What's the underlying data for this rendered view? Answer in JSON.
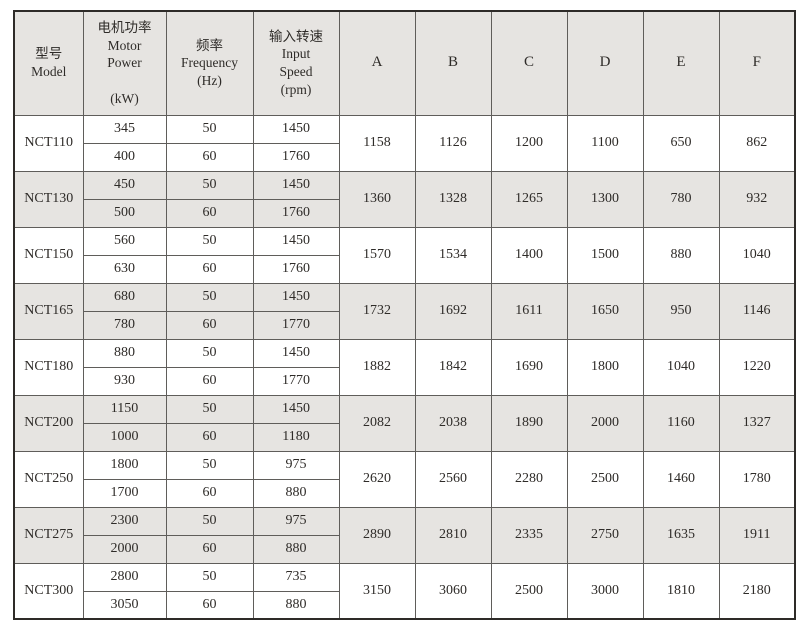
{
  "table": {
    "headers": {
      "model": "型号\nModel",
      "motor_power": "电机功率\nMotor\nPower\n\n(kW)",
      "frequency": "频率\nFrequency\n(Hz)",
      "input_speed": "输入转速\nInput\nSpeed\n(rpm)",
      "dims": [
        "A",
        "B",
        "C",
        "D",
        "E",
        "F"
      ]
    },
    "rows": [
      {
        "model": "NCT110",
        "variants": [
          {
            "power": "345",
            "frequency": "50",
            "speed": "1450"
          },
          {
            "power": "400",
            "frequency": "60",
            "speed": "1760"
          }
        ],
        "dims": [
          "1158",
          "1126",
          "1200",
          "1100",
          "650",
          "862"
        ]
      },
      {
        "model": "NCT130",
        "variants": [
          {
            "power": "450",
            "frequency": "50",
            "speed": "1450"
          },
          {
            "power": "500",
            "frequency": "60",
            "speed": "1760"
          }
        ],
        "dims": [
          "1360",
          "1328",
          "1265",
          "1300",
          "780",
          "932"
        ]
      },
      {
        "model": "NCT150",
        "variants": [
          {
            "power": "560",
            "frequency": "50",
            "speed": "1450"
          },
          {
            "power": "630",
            "frequency": "60",
            "speed": "1760"
          }
        ],
        "dims": [
          "1570",
          "1534",
          "1400",
          "1500",
          "880",
          "1040"
        ]
      },
      {
        "model": "NCT165",
        "variants": [
          {
            "power": "680",
            "frequency": "50",
            "speed": "1450"
          },
          {
            "power": "780",
            "frequency": "60",
            "speed": "1770"
          }
        ],
        "dims": [
          "1732",
          "1692",
          "1611",
          "1650",
          "950",
          "1146"
        ]
      },
      {
        "model": "NCT180",
        "variants": [
          {
            "power": "880",
            "frequency": "50",
            "speed": "1450"
          },
          {
            "power": "930",
            "frequency": "60",
            "speed": "1770"
          }
        ],
        "dims": [
          "1882",
          "1842",
          "1690",
          "1800",
          "1040",
          "1220"
        ]
      },
      {
        "model": "NCT200",
        "variants": [
          {
            "power": "1150",
            "frequency": "50",
            "speed": "1450"
          },
          {
            "power": "1000",
            "frequency": "60",
            "speed": "1180"
          }
        ],
        "dims": [
          "2082",
          "2038",
          "1890",
          "2000",
          "1160",
          "1327"
        ]
      },
      {
        "model": "NCT250",
        "variants": [
          {
            "power": "1800",
            "frequency": "50",
            "speed": "975"
          },
          {
            "power": "1700",
            "frequency": "60",
            "speed": "880"
          }
        ],
        "dims": [
          "2620",
          "2560",
          "2280",
          "2500",
          "1460",
          "1780"
        ]
      },
      {
        "model": "NCT275",
        "variants": [
          {
            "power": "2300",
            "frequency": "50",
            "speed": "975"
          },
          {
            "power": "2000",
            "frequency": "60",
            "speed": "880"
          }
        ],
        "dims": [
          "2890",
          "2810",
          "2335",
          "2750",
          "1635",
          "1911"
        ]
      },
      {
        "model": "NCT300",
        "variants": [
          {
            "power": "2800",
            "frequency": "50",
            "speed": "735"
          },
          {
            "power": "3050",
            "frequency": "60",
            "speed": "880"
          }
        ],
        "dims": [
          "3150",
          "3060",
          "2500",
          "3000",
          "1810",
          "2180"
        ]
      }
    ]
  },
  "colors": {
    "band_gray": "#e6e4e1",
    "band_white": "#ffffff",
    "border_outer": "#2e2b28",
    "border_inner": "#5f5d5a",
    "text": "#2e2b28"
  }
}
